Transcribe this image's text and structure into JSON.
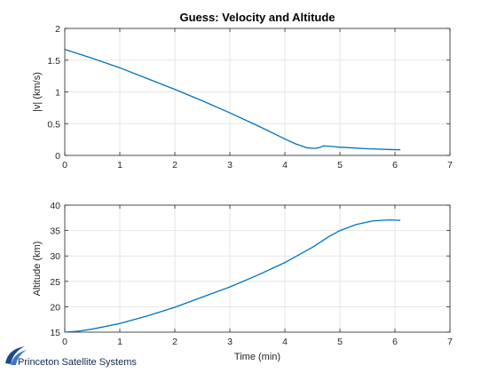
{
  "figure": {
    "title": "Guess: Velocity and Altitude"
  },
  "branding": {
    "logo_text": "Princeton Satellite Systems",
    "logo_color": "#1a4a8a"
  },
  "style": {
    "line_color": "#0072BD",
    "grid_color": "#e6e6e6",
    "axes_color": "#262626"
  },
  "chart_data": [
    {
      "type": "line",
      "title": "Guess: Velocity and Altitude",
      "xlabel": "",
      "ylabel": "|v| (km/s)",
      "xlim": [
        0,
        7
      ],
      "ylim": [
        0,
        2
      ],
      "xticks": [
        0,
        1,
        2,
        3,
        4,
        5,
        6,
        7
      ],
      "yticks": [
        0,
        0.5,
        1,
        1.5,
        2
      ],
      "ytick_labels": [
        "0",
        "0.5",
        "1",
        "1.5",
        "2"
      ],
      "grid": true,
      "x": [
        0,
        0.5,
        1,
        1.5,
        2,
        2.5,
        3,
        3.5,
        4,
        4.2,
        4.4,
        4.55,
        4.65,
        4.7,
        4.8,
        5,
        5.5,
        6,
        6.1
      ],
      "y": [
        1.67,
        1.53,
        1.38,
        1.21,
        1.04,
        0.86,
        0.67,
        0.47,
        0.26,
        0.18,
        0.12,
        0.11,
        0.13,
        0.15,
        0.145,
        0.13,
        0.105,
        0.09,
        0.09
      ]
    },
    {
      "type": "line",
      "title": "",
      "xlabel": "Time (min)",
      "ylabel": "Altitude (km)",
      "xlim": [
        0,
        7
      ],
      "ylim": [
        15,
        40
      ],
      "xticks": [
        0,
        1,
        2,
        3,
        4,
        5,
        6,
        7
      ],
      "yticks": [
        15,
        20,
        25,
        30,
        35,
        40
      ],
      "ytick_labels": [
        "15",
        "20",
        "25",
        "30",
        "35",
        "40"
      ],
      "grid": true,
      "x": [
        0,
        0.25,
        0.5,
        1,
        1.5,
        2,
        2.5,
        3,
        3.5,
        4,
        4.5,
        4.8,
        5,
        5.3,
        5.6,
        5.9,
        6.1
      ],
      "y": [
        15,
        15.2,
        15.6,
        16.7,
        18.2,
        19.9,
        21.9,
        23.9,
        26.2,
        28.7,
        31.7,
        33.8,
        35,
        36.2,
        36.9,
        37.1,
        37
      ]
    }
  ]
}
